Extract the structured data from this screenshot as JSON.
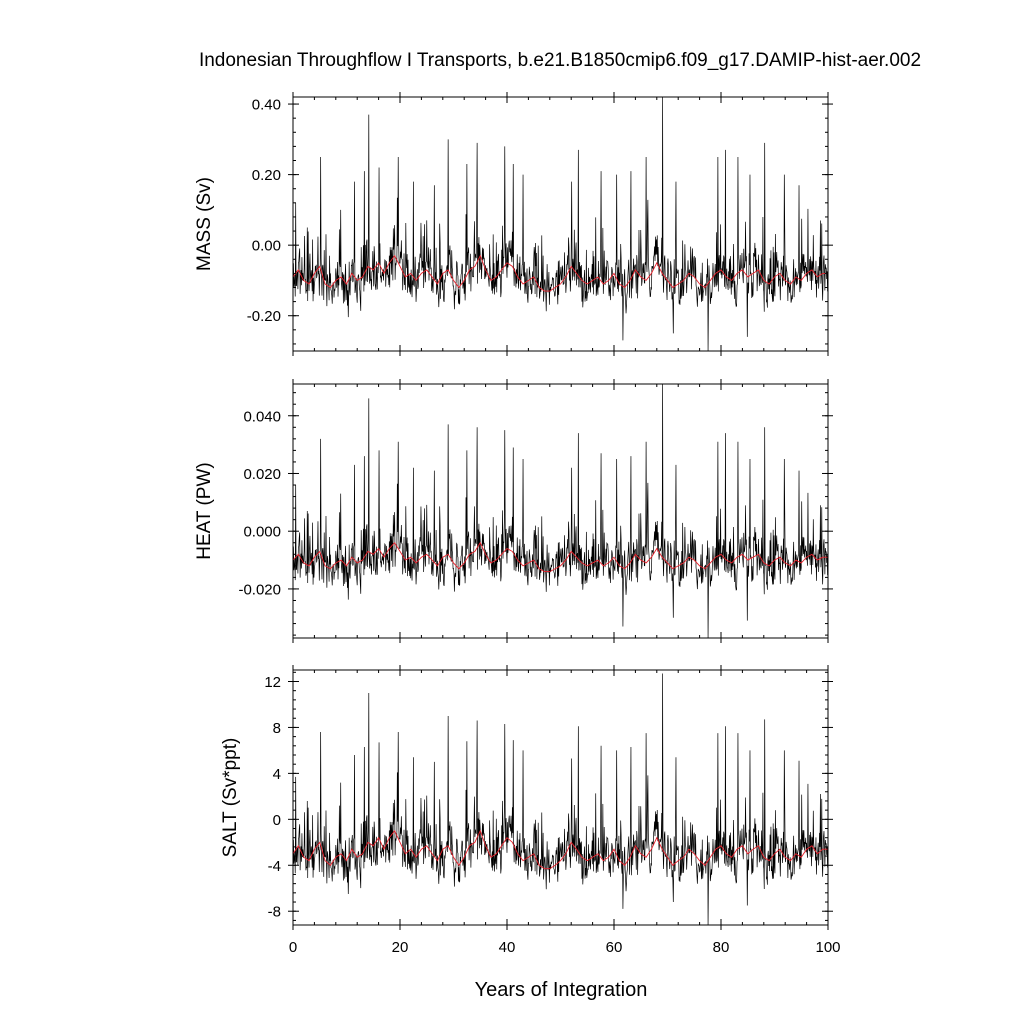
{
  "chart_data": {
    "type": "line",
    "title": "Indonesian Throughflow I Transports, b.e21.B1850cmip6.f09_g17.DAMIP-hist-aer.002",
    "xlabel": "Years of Integration",
    "xlim": [
      0,
      100
    ],
    "xticks": [
      0,
      20,
      40,
      60,
      80,
      100
    ],
    "colors": {
      "monthly": "#000000",
      "annual": "#e8202a"
    },
    "panels": [
      {
        "id": "mass",
        "ylabel": "MASS (Sv)",
        "ylim": [
          -0.3,
          0.42
        ],
        "yticks": [
          -0.2,
          0.0,
          0.2,
          0.4
        ],
        "yticklabels": [
          "-0.20",
          "0.00",
          "0.20",
          "0.40"
        ],
        "baseline": -0.1,
        "noise": 0.045,
        "annual_mean_years": [
          0,
          1,
          2,
          3,
          4,
          5,
          6,
          7,
          8,
          9,
          10,
          11,
          12,
          13,
          14,
          15,
          16,
          17,
          18,
          19,
          20,
          21,
          22,
          23,
          24,
          25,
          26,
          27,
          28,
          29,
          30,
          31,
          32,
          33,
          34,
          35,
          36,
          37,
          38,
          39,
          40,
          41,
          42,
          43,
          44,
          45,
          46,
          47,
          48,
          49,
          50,
          51,
          52,
          53,
          54,
          55,
          56,
          57,
          58,
          59,
          60,
          61,
          62,
          63,
          64,
          65,
          66,
          67,
          68,
          69,
          70,
          71,
          72,
          73,
          74,
          75,
          76,
          77,
          78,
          79,
          80,
          81,
          82,
          83,
          84,
          85,
          86,
          87,
          88,
          89,
          90,
          91,
          92,
          93,
          94,
          95,
          96,
          97,
          98,
          99,
          100
        ],
        "annual_mean": [
          -0.09,
          -0.07,
          -0.1,
          -0.11,
          -0.08,
          -0.06,
          -0.11,
          -0.12,
          -0.1,
          -0.09,
          -0.11,
          -0.08,
          -0.1,
          -0.09,
          -0.06,
          -0.07,
          -0.05,
          -0.08,
          -0.05,
          -0.03,
          -0.06,
          -0.09,
          -0.08,
          -0.1,
          -0.08,
          -0.07,
          -0.09,
          -0.11,
          -0.08,
          -0.07,
          -0.1,
          -0.12,
          -0.1,
          -0.07,
          -0.06,
          -0.03,
          -0.07,
          -0.1,
          -0.09,
          -0.07,
          -0.05,
          -0.06,
          -0.09,
          -0.11,
          -0.1,
          -0.09,
          -0.12,
          -0.13,
          -0.13,
          -0.12,
          -0.11,
          -0.09,
          -0.06,
          -0.08,
          -0.1,
          -0.11,
          -0.1,
          -0.09,
          -0.11,
          -0.1,
          -0.08,
          -0.11,
          -0.12,
          -0.1,
          -0.07,
          -0.09,
          -0.1,
          -0.08,
          -0.05,
          -0.08,
          -0.1,
          -0.12,
          -0.11,
          -0.1,
          -0.08,
          -0.09,
          -0.11,
          -0.12,
          -0.1,
          -0.08,
          -0.07,
          -0.09,
          -0.1,
          -0.08,
          -0.07,
          -0.09,
          -0.08,
          -0.07,
          -0.1,
          -0.11,
          -0.09,
          -0.08,
          -0.1,
          -0.11,
          -0.09,
          -0.1,
          -0.08,
          -0.07,
          -0.09,
          -0.08,
          -0.08
        ],
        "spikes": [
          [
            0.5,
            0.12
          ],
          [
            2.7,
            0.05
          ],
          [
            5.2,
            0.25
          ],
          [
            8.9,
            0.1
          ],
          [
            11.5,
            0.18
          ],
          [
            13.3,
            0.21
          ],
          [
            14.2,
            0.37
          ],
          [
            16.1,
            0.22
          ],
          [
            19.7,
            0.25
          ],
          [
            22.5,
            0.18
          ],
          [
            26.4,
            0.17
          ],
          [
            29.0,
            0.3
          ],
          [
            32.5,
            0.23
          ],
          [
            34.4,
            0.29
          ],
          [
            39.6,
            0.28
          ],
          [
            41.2,
            0.23
          ],
          [
            43.0,
            0.2
          ],
          [
            52.1,
            0.18
          ],
          [
            53.3,
            0.27
          ],
          [
            57.6,
            0.21
          ],
          [
            60.5,
            0.2
          ],
          [
            63.2,
            0.21
          ],
          [
            66.0,
            0.25
          ],
          [
            69.1,
            0.42
          ],
          [
            71.6,
            0.18
          ],
          [
            79.4,
            0.25
          ],
          [
            80.8,
            0.27
          ],
          [
            83.2,
            0.25
          ],
          [
            85.4,
            0.2
          ],
          [
            88.2,
            0.29
          ],
          [
            91.8,
            0.2
          ],
          [
            94.6,
            0.17
          ],
          [
            98.6,
            0.07
          ],
          [
            77.6,
            -0.3
          ],
          [
            61.7,
            -0.27
          ],
          [
            84.9,
            -0.26
          ],
          [
            71.1,
            -0.25
          ]
        ],
        "seed": 11
      },
      {
        "id": "heat",
        "ylabel": "HEAT (PW)",
        "ylim": [
          -0.037,
          0.051
        ],
        "yticks": [
          -0.02,
          0.0,
          0.02,
          0.04
        ],
        "yticklabels": [
          "-0.020",
          "0.000",
          "0.020",
          "0.040"
        ],
        "baseline": -0.011,
        "noise": 0.0055,
        "annual_mean_years": [
          0,
          1,
          2,
          3,
          4,
          5,
          6,
          7,
          8,
          9,
          10,
          11,
          12,
          13,
          14,
          15,
          16,
          17,
          18,
          19,
          20,
          21,
          22,
          23,
          24,
          25,
          26,
          27,
          28,
          29,
          30,
          31,
          32,
          33,
          34,
          35,
          36,
          37,
          38,
          39,
          40,
          41,
          42,
          43,
          44,
          45,
          46,
          47,
          48,
          49,
          50,
          51,
          52,
          53,
          54,
          55,
          56,
          57,
          58,
          59,
          60,
          61,
          62,
          63,
          64,
          65,
          66,
          67,
          68,
          69,
          70,
          71,
          72,
          73,
          74,
          75,
          76,
          77,
          78,
          79,
          80,
          81,
          82,
          83,
          84,
          85,
          86,
          87,
          88,
          89,
          90,
          91,
          92,
          93,
          94,
          95,
          96,
          97,
          98,
          99,
          100
        ],
        "annual_mean": [
          -0.01,
          -0.008,
          -0.011,
          -0.012,
          -0.009,
          -0.007,
          -0.012,
          -0.013,
          -0.011,
          -0.01,
          -0.012,
          -0.009,
          -0.011,
          -0.01,
          -0.007,
          -0.008,
          -0.006,
          -0.009,
          -0.006,
          -0.004,
          -0.007,
          -0.01,
          -0.009,
          -0.011,
          -0.009,
          -0.008,
          -0.01,
          -0.012,
          -0.009,
          -0.008,
          -0.011,
          -0.013,
          -0.011,
          -0.008,
          -0.007,
          -0.004,
          -0.008,
          -0.011,
          -0.01,
          -0.008,
          -0.006,
          -0.007,
          -0.01,
          -0.012,
          -0.011,
          -0.01,
          -0.013,
          -0.014,
          -0.014,
          -0.013,
          -0.012,
          -0.01,
          -0.007,
          -0.009,
          -0.011,
          -0.012,
          -0.011,
          -0.01,
          -0.012,
          -0.011,
          -0.009,
          -0.012,
          -0.013,
          -0.011,
          -0.008,
          -0.01,
          -0.011,
          -0.009,
          -0.006,
          -0.009,
          -0.011,
          -0.013,
          -0.012,
          -0.011,
          -0.009,
          -0.01,
          -0.012,
          -0.013,
          -0.011,
          -0.009,
          -0.008,
          -0.01,
          -0.011,
          -0.009,
          -0.008,
          -0.01,
          -0.009,
          -0.008,
          -0.011,
          -0.012,
          -0.01,
          -0.009,
          -0.011,
          -0.012,
          -0.01,
          -0.011,
          -0.009,
          -0.008,
          -0.01,
          -0.009,
          -0.009
        ],
        "spikes": [
          [
            0.5,
            0.016
          ],
          [
            2.7,
            0.007
          ],
          [
            5.2,
            0.032
          ],
          [
            8.9,
            0.013
          ],
          [
            11.5,
            0.023
          ],
          [
            13.3,
            0.026
          ],
          [
            14.2,
            0.046
          ],
          [
            16.1,
            0.028
          ],
          [
            19.7,
            0.031
          ],
          [
            22.5,
            0.022
          ],
          [
            26.4,
            0.021
          ],
          [
            29.0,
            0.037
          ],
          [
            32.5,
            0.028
          ],
          [
            34.4,
            0.036
          ],
          [
            39.6,
            0.035
          ],
          [
            41.2,
            0.029
          ],
          [
            43.0,
            0.025
          ],
          [
            52.1,
            0.022
          ],
          [
            53.3,
            0.034
          ],
          [
            57.6,
            0.027
          ],
          [
            60.5,
            0.025
          ],
          [
            63.2,
            0.026
          ],
          [
            66.0,
            0.031
          ],
          [
            69.1,
            0.051
          ],
          [
            71.6,
            0.023
          ],
          [
            79.4,
            0.031
          ],
          [
            80.8,
            0.034
          ],
          [
            83.2,
            0.031
          ],
          [
            85.4,
            0.025
          ],
          [
            88.2,
            0.036
          ],
          [
            91.8,
            0.025
          ],
          [
            94.6,
            0.021
          ],
          [
            98.6,
            0.009
          ],
          [
            77.6,
            -0.037
          ],
          [
            61.7,
            -0.033
          ],
          [
            84.9,
            -0.031
          ],
          [
            71.1,
            -0.03
          ]
        ],
        "seed": 11
      },
      {
        "id": "salt",
        "ylabel": "SALT (Sv*ppt)",
        "ylim": [
          -9.2,
          13
        ],
        "yticks": [
          -8,
          -4,
          0,
          4,
          8,
          12
        ],
        "yticklabels": [
          "-8",
          "-4",
          "0",
          "4",
          "8",
          "12"
        ],
        "baseline": -3.3,
        "noise": 1.4,
        "annual_mean_years": [
          0,
          1,
          2,
          3,
          4,
          5,
          6,
          7,
          8,
          9,
          10,
          11,
          12,
          13,
          14,
          15,
          16,
          17,
          18,
          19,
          20,
          21,
          22,
          23,
          24,
          25,
          26,
          27,
          28,
          29,
          30,
          31,
          32,
          33,
          34,
          35,
          36,
          37,
          38,
          39,
          40,
          41,
          42,
          43,
          44,
          45,
          46,
          47,
          48,
          49,
          50,
          51,
          52,
          53,
          54,
          55,
          56,
          57,
          58,
          59,
          60,
          61,
          62,
          63,
          64,
          65,
          66,
          67,
          68,
          69,
          70,
          71,
          72,
          73,
          74,
          75,
          76,
          77,
          78,
          79,
          80,
          81,
          82,
          83,
          84,
          85,
          86,
          87,
          88,
          89,
          90,
          91,
          92,
          93,
          94,
          95,
          96,
          97,
          98,
          99,
          100
        ],
        "annual_mean": [
          -3.0,
          -2.3,
          -3.3,
          -3.6,
          -2.6,
          -2.0,
          -3.6,
          -4.0,
          -3.3,
          -3.0,
          -3.6,
          -2.6,
          -3.3,
          -3.0,
          -2.0,
          -2.3,
          -1.6,
          -2.6,
          -1.6,
          -1.0,
          -2.0,
          -3.0,
          -2.6,
          -3.3,
          -2.6,
          -2.3,
          -3.0,
          -3.6,
          -2.6,
          -2.3,
          -3.3,
          -4.0,
          -3.3,
          -2.3,
          -2.0,
          -1.0,
          -2.3,
          -3.3,
          -3.0,
          -2.3,
          -1.6,
          -2.0,
          -3.0,
          -3.6,
          -3.3,
          -3.0,
          -4.0,
          -4.3,
          -4.3,
          -4.0,
          -3.6,
          -3.0,
          -2.0,
          -2.6,
          -3.3,
          -3.6,
          -3.3,
          -3.0,
          -3.6,
          -3.3,
          -2.6,
          -3.6,
          -4.0,
          -3.3,
          -2.3,
          -3.0,
          -3.3,
          -2.6,
          -1.6,
          -2.6,
          -3.3,
          -4.0,
          -3.6,
          -3.3,
          -2.6,
          -3.0,
          -3.6,
          -4.0,
          -3.3,
          -2.6,
          -2.3,
          -3.0,
          -3.3,
          -2.6,
          -2.3,
          -3.0,
          -2.6,
          -2.3,
          -3.3,
          -3.6,
          -3.0,
          -2.6,
          -3.3,
          -3.6,
          -3.0,
          -3.3,
          -2.6,
          -2.3,
          -3.0,
          -2.6,
          -2.6
        ],
        "spikes": [
          [
            0.5,
            3.7
          ],
          [
            2.7,
            1.6
          ],
          [
            5.2,
            7.6
          ],
          [
            8.9,
            3.2
          ],
          [
            11.5,
            5.6
          ],
          [
            13.3,
            6.3
          ],
          [
            14.2,
            11.0
          ],
          [
            16.1,
            6.7
          ],
          [
            19.7,
            7.6
          ],
          [
            22.5,
            5.4
          ],
          [
            26.4,
            5.0
          ],
          [
            29.0,
            9.0
          ],
          [
            32.5,
            6.8
          ],
          [
            34.4,
            8.6
          ],
          [
            39.6,
            8.3
          ],
          [
            41.2,
            6.9
          ],
          [
            43.0,
            6.0
          ],
          [
            52.1,
            5.3
          ],
          [
            53.3,
            8.1
          ],
          [
            57.6,
            6.4
          ],
          [
            60.5,
            6.0
          ],
          [
            63.2,
            6.3
          ],
          [
            66.0,
            7.5
          ],
          [
            69.1,
            12.7
          ],
          [
            71.6,
            5.4
          ],
          [
            79.4,
            7.5
          ],
          [
            80.8,
            8.1
          ],
          [
            83.2,
            7.5
          ],
          [
            85.4,
            6.0
          ],
          [
            88.2,
            8.7
          ],
          [
            91.8,
            6.0
          ],
          [
            94.6,
            5.1
          ],
          [
            98.6,
            2.2
          ],
          [
            77.6,
            -9.2
          ],
          [
            61.7,
            -7.8
          ],
          [
            84.9,
            -7.5
          ],
          [
            71.1,
            -7.2
          ]
        ],
        "seed": 11
      }
    ]
  }
}
